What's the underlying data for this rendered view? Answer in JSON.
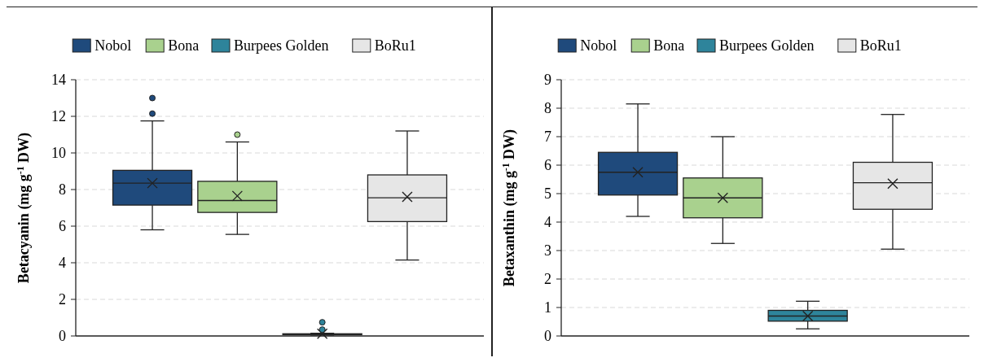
{
  "chart_data": [
    {
      "type": "box",
      "ylabel": "Betacyanin (mg g$^{-1}$ DW)",
      "categories": [
        null
      ],
      "ylim": [
        0,
        14
      ],
      "yticks": [
        0,
        2,
        4,
        6,
        8,
        10,
        12,
        14
      ],
      "grid": "y",
      "legend": "top",
      "series": [
        {
          "name": "Nobol",
          "color": "#1f4a7c",
          "boxes": [
            {
              "low": 5.8,
              "q1": 7.15,
              "median": 8.35,
              "q3": 9.05,
              "high": 11.75,
              "mean": 8.35,
              "outliers": [
                12.15,
                13.0
              ]
            }
          ]
        },
        {
          "name": "Bona",
          "color": "#a9d18e",
          "boxes": [
            {
              "low": 5.55,
              "q1": 6.75,
              "median": 7.4,
              "q3": 8.45,
              "high": 10.6,
              "mean": 7.65,
              "outliers": [
                11.0
              ]
            }
          ]
        },
        {
          "name": "Burpees Golden",
          "color": "#2e849b",
          "boxes": [
            {
              "low": 0.05,
              "q1": 0.08,
              "median": 0.1,
              "q3": 0.12,
              "high": 0.15,
              "mean": 0.12,
              "outliers": [
                0.35,
                0.75
              ]
            }
          ]
        },
        {
          "name": "BoRu1",
          "color": "#e6e6e6",
          "boxes": [
            {
              "low": 4.15,
              "q1": 6.25,
              "median": 7.55,
              "q3": 8.8,
              "high": 11.2,
              "mean": 7.6
            }
          ]
        }
      ]
    },
    {
      "type": "box",
      "ylabel": "Betaxanthin (mg g$^{-1}$ DW)",
      "categories": [
        null
      ],
      "ylim": [
        0,
        9
      ],
      "yticks": [
        0,
        1,
        2,
        3,
        4,
        5,
        6,
        7,
        8,
        9
      ],
      "grid": "y",
      "legend": "top",
      "series": [
        {
          "name": "Nobol",
          "color": "#1f4a7c",
          "boxes": [
            {
              "low": 4.2,
              "q1": 4.95,
              "median": 5.75,
              "q3": 6.45,
              "high": 8.15,
              "mean": 5.75
            }
          ]
        },
        {
          "name": "Bona",
          "color": "#a9d18e",
          "boxes": [
            {
              "low": 3.25,
              "q1": 4.15,
              "median": 4.85,
              "q3": 5.55,
              "high": 7.0,
              "mean": 4.85
            }
          ]
        },
        {
          "name": "Burpees Golden",
          "color": "#2e849b",
          "boxes": [
            {
              "low": 0.25,
              "q1": 0.52,
              "median": 0.7,
              "q3": 0.9,
              "high": 1.22,
              "mean": 0.7
            }
          ]
        },
        {
          "name": "BoRu1",
          "color": "#e6e6e6",
          "boxes": [
            {
              "low": 3.05,
              "q1": 4.45,
              "median": 5.38,
              "q3": 6.1,
              "high": 7.78,
              "mean": 5.35
            }
          ]
        }
      ]
    }
  ]
}
